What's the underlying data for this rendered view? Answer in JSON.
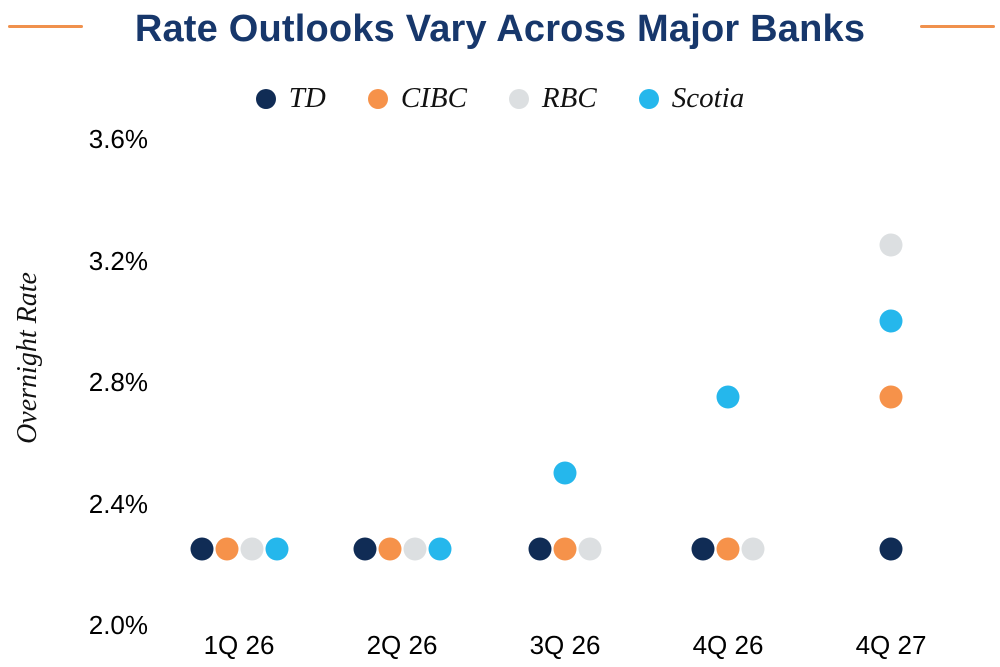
{
  "chart_data": {
    "type": "scatter",
    "title": "Rate Outlooks Vary Across Major Banks",
    "ylabel": "Overnight Rate",
    "xlabel": "",
    "unit": "%",
    "categories": [
      "1Q 26",
      "2Q 26",
      "3Q 26",
      "4Q 26",
      "4Q 27"
    ],
    "series": [
      {
        "name": "TD",
        "color": "#102c55",
        "values": [
          2.25,
          2.25,
          2.25,
          2.25,
          2.25
        ]
      },
      {
        "name": "CIBC",
        "color": "#f6924a",
        "values": [
          2.25,
          2.25,
          2.25,
          2.25,
          2.75
        ]
      },
      {
        "name": "RBC",
        "color": "#dcdfe1",
        "values": [
          2.25,
          2.25,
          2.25,
          2.25,
          3.25
        ]
      },
      {
        "name": "Scotia",
        "color": "#25b7ec",
        "values": [
          2.25,
          2.25,
          2.5,
          2.75,
          3.0
        ]
      }
    ],
    "ylim": [
      2.0,
      3.6
    ],
    "yticks": [
      {
        "value": 3.6,
        "label": "3.6%"
      },
      {
        "value": 3.2,
        "label": "3.2%"
      },
      {
        "value": 2.8,
        "label": "2.8%"
      },
      {
        "value": 2.4,
        "label": "2.4%"
      },
      {
        "value": 2.0,
        "label": "2.0%"
      }
    ],
    "grid": false,
    "legend_position": "top",
    "colors": {
      "title": "#17376b",
      "accent_rule": "#f0914d",
      "tick_text": "#000000"
    }
  }
}
